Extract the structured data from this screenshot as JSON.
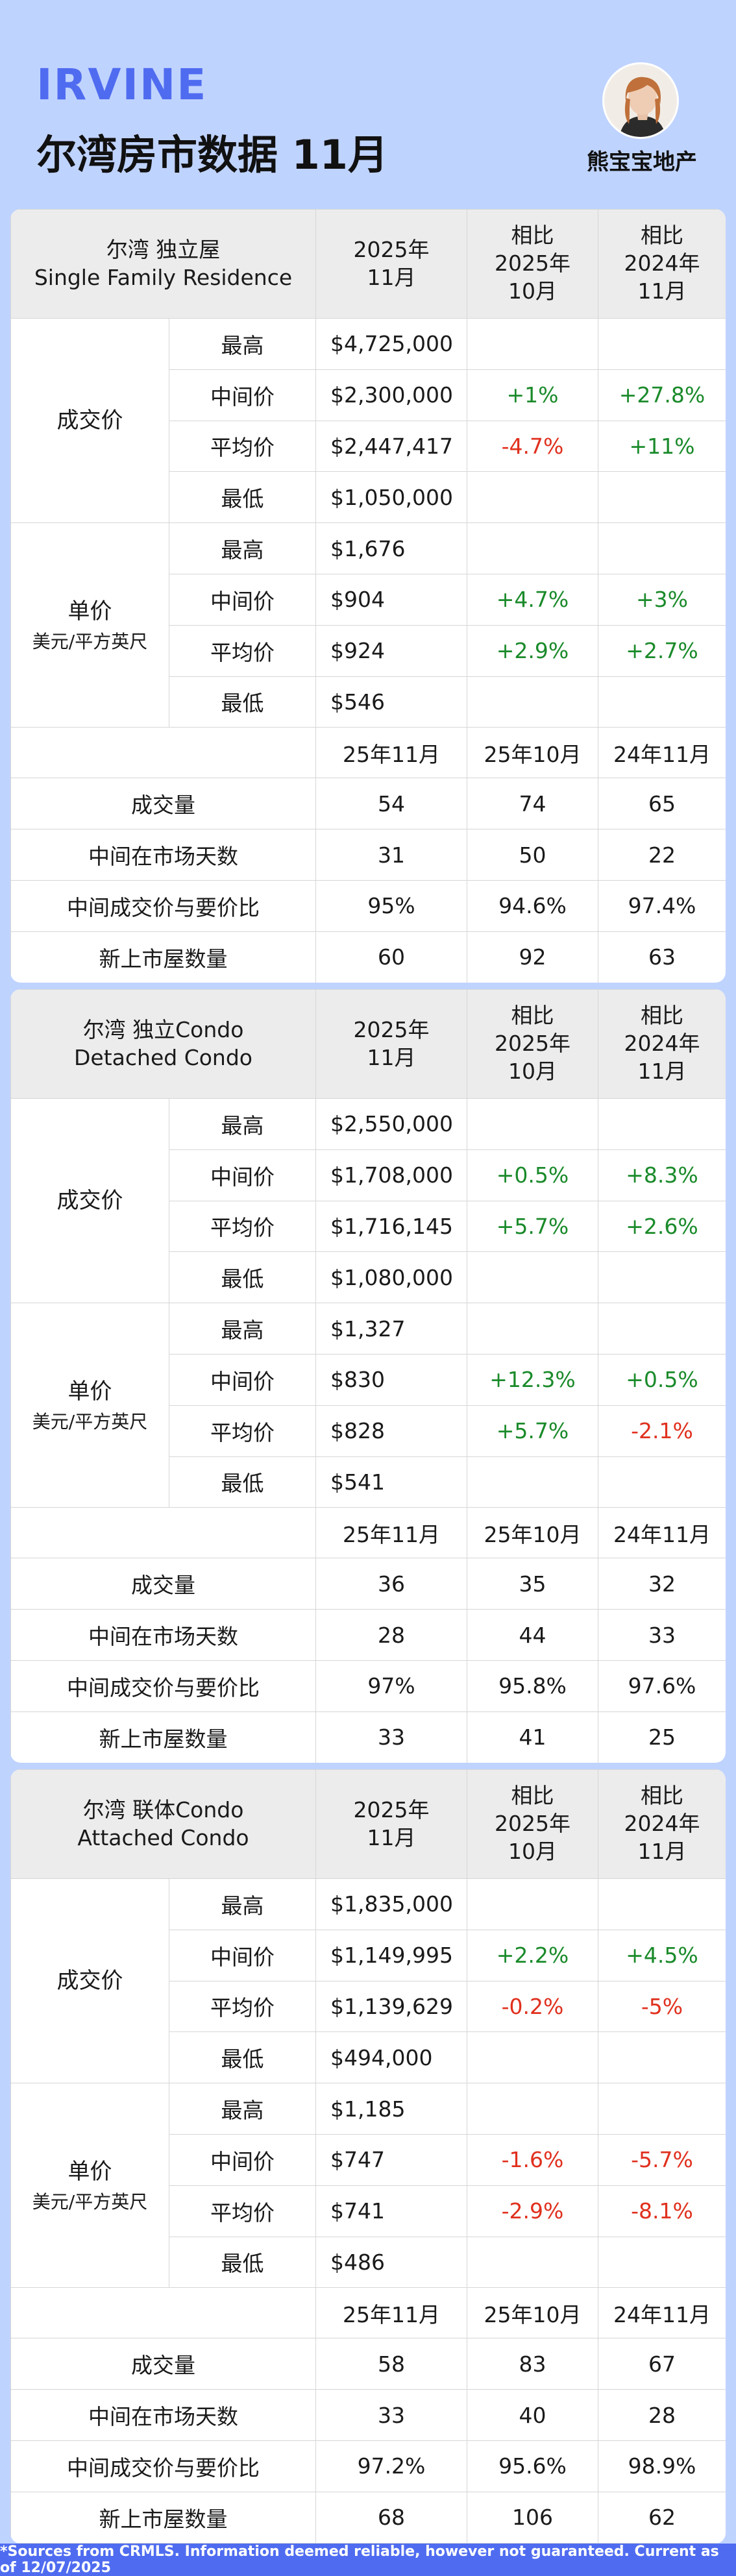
{
  "header": {
    "city": "IRVINE",
    "title": "尔湾房市数据 11月",
    "brand": "熊宝宝地产"
  },
  "common": {
    "price_group": "成交价",
    "unit_group": "单价",
    "unit_sub": "美元/平方英尺",
    "row_max": "最高",
    "row_median": "中间价",
    "row_avg": "平均价",
    "row_min": "最低",
    "col_2025": "2025年",
    "col_nov": "11月",
    "col_cmp": "相比",
    "col_2025b": "2025年",
    "col_oct": "10月",
    "col_2024": "2024年",
    "col_nov2": "11月",
    "sub_nov25": "25年11月",
    "sub_oct25": "25年10月",
    "sub_nov24": "24年11月",
    "stat_sales": "成交量",
    "stat_dom": "中间在市场天数",
    "stat_ratio": "中间成交价与要价比",
    "stat_new": "新上市屋数量"
  },
  "sections": [
    {
      "name_cn": "尔湾  独立屋",
      "name_en": "Single Family Residence",
      "price": {
        "max": "$4,725,000",
        "median": "$2,300,000",
        "median_mom": "+1%",
        "median_yoy": "+27.8%",
        "avg": "$2,447,417",
        "avg_mom": "-4.7%",
        "avg_yoy": "+11%",
        "min": "$1,050,000"
      },
      "unit": {
        "max": "$1,676",
        "median": "$904",
        "median_mom": "+4.7%",
        "median_yoy": "+3%",
        "avg": "$924",
        "avg_mom": "+2.9%",
        "avg_yoy": "+2.7%",
        "min": "$546"
      },
      "stats": {
        "sales": [
          "54",
          "74",
          "65"
        ],
        "dom": [
          "31",
          "50",
          "22"
        ],
        "ratio": [
          "95%",
          "94.6%",
          "97.4%"
        ],
        "new": [
          "60",
          "92",
          "63"
        ]
      }
    },
    {
      "name_cn": "尔湾  独立Condo",
      "name_en": "Detached Condo",
      "price": {
        "max": "$2,550,000",
        "median": "$1,708,000",
        "median_mom": "+0.5%",
        "median_yoy": "+8.3%",
        "avg": "$1,716,145",
        "avg_mom": "+5.7%",
        "avg_yoy": "+2.6%",
        "min": "$1,080,000"
      },
      "unit": {
        "max": "$1,327",
        "median": "$830",
        "median_mom": "+12.3%",
        "median_yoy": "+0.5%",
        "avg": "$828",
        "avg_mom": "+5.7%",
        "avg_yoy": "-2.1%",
        "min": "$541"
      },
      "stats": {
        "sales": [
          "36",
          "35",
          "32"
        ],
        "dom": [
          "28",
          "44",
          "33"
        ],
        "ratio": [
          "97%",
          "95.8%",
          "97.6%"
        ],
        "new": [
          "33",
          "41",
          "25"
        ]
      }
    },
    {
      "name_cn": "尔湾  联体Condo",
      "name_en": "Attached Condo",
      "price": {
        "max": "$1,835,000",
        "median": "$1,149,995",
        "median_mom": "+2.2%",
        "median_yoy": "+4.5%",
        "avg": "$1,139,629",
        "avg_mom": "-0.2%",
        "avg_yoy": "-5%",
        "min": "$494,000"
      },
      "unit": {
        "max": "$1,185",
        "median": "$747",
        "median_mom": "-1.6%",
        "median_yoy": "-5.7%",
        "avg": "$741",
        "avg_mom": "-2.9%",
        "avg_yoy": "-8.1%",
        "min": "$486"
      },
      "stats": {
        "sales": [
          "58",
          "83",
          "67"
        ],
        "dom": [
          "33",
          "40",
          "28"
        ],
        "ratio": [
          "97.2%",
          "95.6%",
          "98.9%"
        ],
        "new": [
          "68",
          "106",
          "62"
        ]
      }
    }
  ],
  "colors": {
    "background": "#bfd3ff",
    "accent": "#4f6cf0",
    "positive": "#1a8a2a",
    "negative": "#e0301e"
  },
  "footer": {
    "text": "*Sources from CRMLS. Information deemed reliable, however not guaranteed. Current as of 12/07/2025"
  }
}
